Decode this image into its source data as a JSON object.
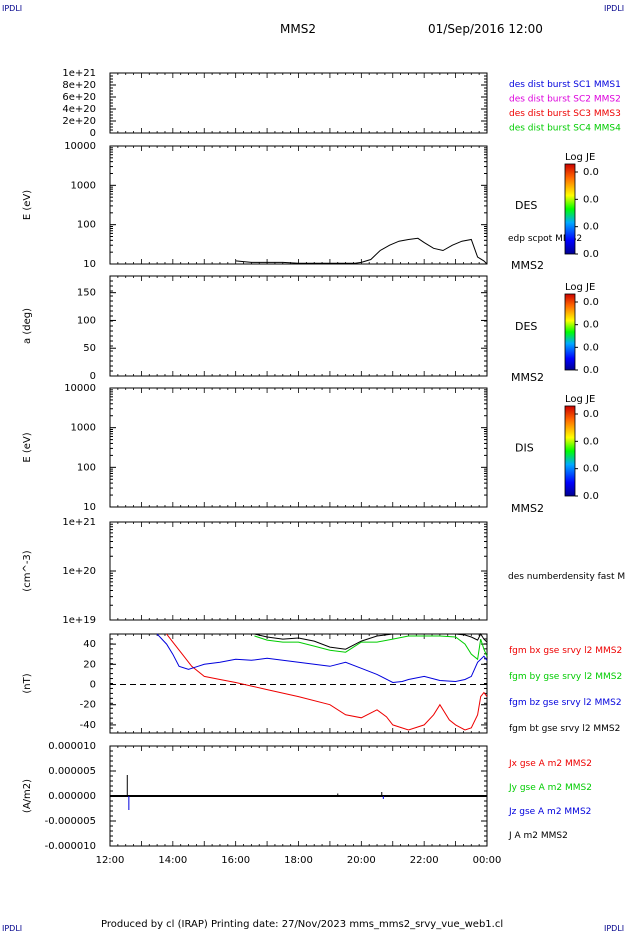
{
  "corners": {
    "tl": "IPDLI",
    "tr": "IPDLI",
    "bl": "IPDLI",
    "br": "IPDLI"
  },
  "header": {
    "spacecraft": "MMS2",
    "datetime": "01/Sep/2016 12:00"
  },
  "footer": {
    "text": "Produced by cl (IRAP)   Printing date: 27/Nov/2023   mms_mms2_srvy_vue_web1.cl"
  },
  "colors": {
    "red": "#ee0000",
    "green": "#00cc00",
    "blue": "#0000dd",
    "magenta": "#dd00dd",
    "black": "#000000",
    "dashed": "#000000"
  },
  "x_ticks": [
    "12:00",
    "14:00",
    "16:00",
    "18:00",
    "20:00",
    "22:00",
    "00:00"
  ],
  "chart_data": [
    {
      "type": "line",
      "panel": "des-dist-burst",
      "ylabel": "",
      "yticks": [
        "1e+21",
        "8e+20",
        "6e+20",
        "4e+20",
        "2e+20",
        "0"
      ],
      "ylim": [
        0,
        1e+21
      ],
      "dashed_zero": true,
      "legend": [
        {
          "text": "des dist burst SC1 MMS1",
          "color": "#0000dd"
        },
        {
          "text": "des dist burst SC2 MMS2",
          "color": "#dd00dd"
        },
        {
          "text": "des dist burst SC3 MMS3",
          "color": "#ee0000"
        },
        {
          "text": "des dist burst SC4 MMS4",
          "color": "#00cc00"
        }
      ]
    },
    {
      "type": "line",
      "panel": "des-energy",
      "scale": "log",
      "ylabel": "E (eV)",
      "yticks": [
        "10000",
        "1000",
        "100",
        "10"
      ],
      "ylim": [
        10,
        10000
      ],
      "right_label": "DES",
      "bottom_right": "MMS2",
      "series_label": "edp scpot MMS2",
      "colorbar": {
        "title": "Log JE",
        "ticks": [
          "0.0",
          "0.0",
          "0.0",
          "0.0"
        ]
      },
      "x": [
        16.0,
        16.5,
        17.0,
        17.5,
        18.0,
        18.5,
        19.0,
        19.5,
        19.8,
        20.0,
        20.3,
        20.6,
        20.9,
        21.2,
        21.5,
        21.8,
        22.0,
        22.3,
        22.6,
        22.9,
        23.2,
        23.5,
        23.7,
        23.9,
        24.0
      ],
      "y": [
        12,
        11,
        11,
        11,
        10.5,
        10.5,
        10.5,
        10.5,
        10.5,
        11,
        13,
        22,
        30,
        38,
        42,
        45,
        35,
        25,
        22,
        30,
        38,
        42,
        15,
        12,
        10
      ]
    },
    {
      "type": "line",
      "panel": "des-pitch",
      "ylabel": "a (deg)",
      "yticks": [
        "150",
        "100",
        "50",
        "0"
      ],
      "ylim": [
        0,
        180
      ],
      "right_label": "DES",
      "bottom_right": "MMS2",
      "colorbar": {
        "title": "Log JE",
        "ticks": [
          "0.0",
          "0.0",
          "0.0",
          "0.0"
        ]
      }
    },
    {
      "type": "line",
      "panel": "dis-energy",
      "scale": "log",
      "ylabel": "E (eV)",
      "yticks": [
        "10000",
        "1000",
        "100",
        "10"
      ],
      "ylim": [
        10,
        10000
      ],
      "right_label": "DIS",
      "bottom_right": "MMS2",
      "colorbar": {
        "title": "Log JE",
        "ticks": [
          "0.0",
          "0.0",
          "0.0",
          "0.0"
        ]
      }
    },
    {
      "type": "line",
      "panel": "density",
      "scale": "log",
      "ylabel": "(cm^-3)",
      "yticks": [
        "1e+21",
        "1e+20",
        "1e+19"
      ],
      "ylim": [
        1e+19,
        1e+21
      ],
      "series_label": "des numberdensity fast M"
    },
    {
      "type": "line",
      "panel": "fgm",
      "ylabel": "(nT)",
      "yticks": [
        "40",
        "20",
        "0",
        "-20",
        "-40"
      ],
      "ylim": [
        -48,
        50
      ],
      "dashed_zero": true,
      "legend": [
        {
          "text": "fgm bx gse srvy l2 MMS2",
          "color": "#ee0000"
        },
        {
          "text": "fgm by gse srvy l2 MMS2",
          "color": "#00cc00"
        },
        {
          "text": "fgm bz gse srvy l2 MMS2",
          "color": "#0000dd"
        },
        {
          "text": "fgm bt gse srvy l2 MMS2",
          "color": "#000000"
        }
      ],
      "series": [
        {
          "name": "fgm bx gse srvy l2 MMS2",
          "color": "#ee0000",
          "x": [
            13.8,
            14.0,
            14.3,
            14.6,
            15.0,
            15.5,
            16.0,
            17.0,
            18.0,
            19.0,
            19.5,
            20.0,
            20.5,
            20.8,
            21.0,
            21.5,
            22.0,
            22.3,
            22.5,
            22.8,
            23.0,
            23.3,
            23.5,
            23.7,
            23.8,
            23.9,
            24.0
          ],
          "y": [
            50,
            42,
            30,
            18,
            8,
            5,
            2,
            -5,
            -12,
            -20,
            -30,
            -33,
            -25,
            -32,
            -40,
            -45,
            -40,
            -30,
            -20,
            -35,
            -40,
            -45,
            -43,
            -30,
            -12,
            -8,
            -12
          ]
        },
        {
          "name": "fgm by gse srvy l2 MMS2",
          "color": "#00cc00",
          "x": [
            16.6,
            17.0,
            17.5,
            18.0,
            18.5,
            19.0,
            19.5,
            20.0,
            20.5,
            21.0,
            21.5,
            22.0,
            22.5,
            23.0,
            23.3,
            23.5,
            23.7,
            23.8,
            23.9,
            24.0
          ],
          "y": [
            48,
            44,
            42,
            42,
            38,
            34,
            32,
            42,
            42,
            45,
            48,
            48,
            48,
            47,
            40,
            30,
            25,
            45,
            35,
            28
          ]
        },
        {
          "name": "fgm bz gse srvy l2 MMS2",
          "color": "#0000dd",
          "x": [
            13.5,
            13.8,
            14.0,
            14.2,
            14.5,
            14.8,
            15.0,
            15.5,
            16.0,
            16.5,
            17.0,
            18.0,
            18.5,
            19.0,
            19.5,
            20.0,
            20.5,
            21.0,
            21.3,
            21.5,
            22.0,
            22.5,
            23.0,
            23.3,
            23.5,
            23.7,
            23.8,
            23.9,
            24.0
          ],
          "y": [
            50,
            40,
            30,
            18,
            15,
            18,
            20,
            22,
            25,
            24,
            26,
            22,
            20,
            18,
            22,
            16,
            10,
            2,
            3,
            5,
            8,
            4,
            3,
            5,
            8,
            22,
            25,
            28,
            24
          ]
        },
        {
          "name": "fgm bt gse srvy l2 MMS2",
          "color": "#000000",
          "x": [
            16.6,
            17.0,
            17.5,
            18.0,
            18.5,
            19.0,
            19.5,
            20.0,
            20.5,
            21.0,
            21.5,
            22.0,
            22.5,
            23.0,
            23.3,
            23.5,
            23.7,
            23.8,
            23.9,
            24.0
          ],
          "y": [
            50,
            47,
            45,
            46,
            43,
            37,
            35,
            43,
            48,
            50,
            50,
            50,
            50,
            50,
            49,
            47,
            44,
            50,
            45,
            42
          ]
        }
      ]
    },
    {
      "type": "line",
      "panel": "current",
      "ylabel": "(A/m2)",
      "yticks": [
        "0.000010",
        "0.000005",
        "0.000000",
        "-0.000005",
        "-0.000010"
      ],
      "ylim": [
        -1e-05,
        1e-05
      ],
      "legend": [
        {
          "text": "Jx gse A m2 MMS2",
          "color": "#ee0000"
        },
        {
          "text": "Jy gse A m2 MMS2",
          "color": "#00cc00"
        },
        {
          "text": "Jz gse A m2 MMS2",
          "color": "#0000dd"
        },
        {
          "text": "J A m2 MMS2",
          "color": "#000000"
        }
      ],
      "spikes": [
        {
          "x": 12.55,
          "y": 4.2e-06
        },
        {
          "x": 12.6,
          "y": -2.8e-06
        },
        {
          "x": 19.25,
          "y": 5e-07
        },
        {
          "x": 20.65,
          "y": 8e-07
        },
        {
          "x": 20.7,
          "y": -6e-07
        }
      ]
    }
  ]
}
